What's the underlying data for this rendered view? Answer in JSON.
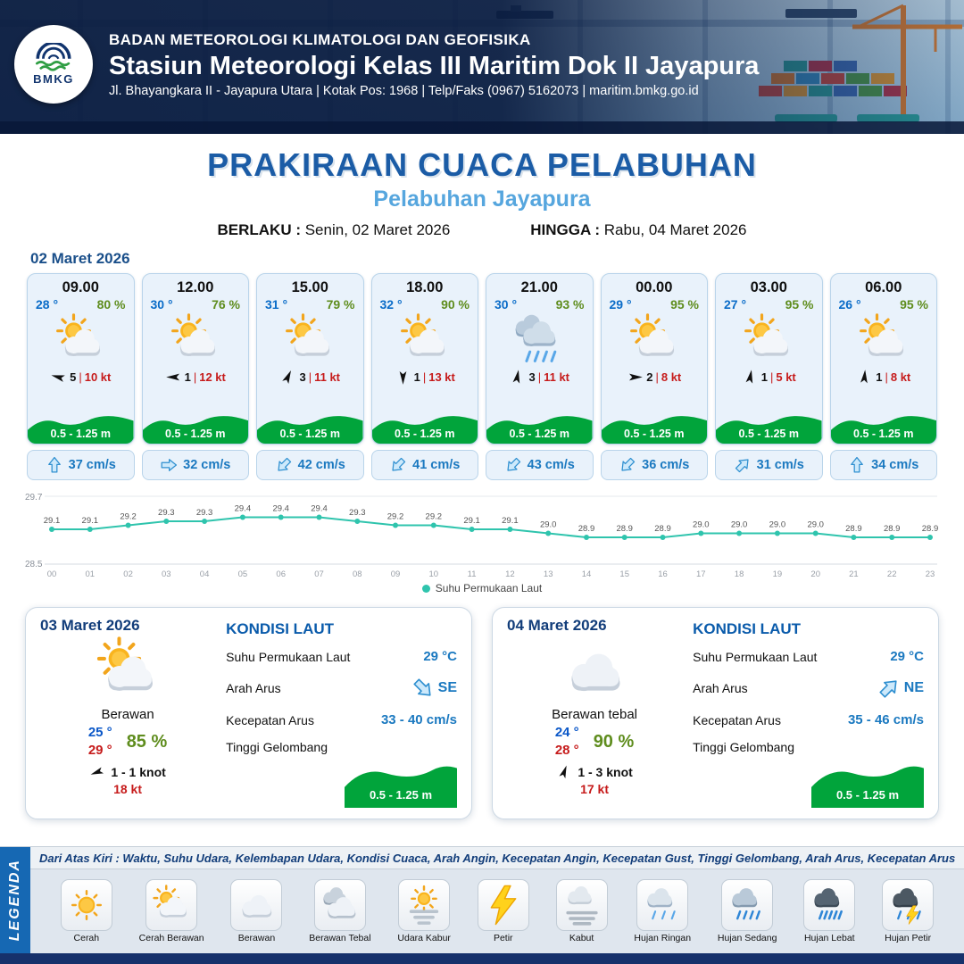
{
  "colors": {
    "header_navy": "#0b1f44",
    "title_blue": "#1b5ca6",
    "subtitle_blue": "#56a6de",
    "temp_blue": "#0a6cc8",
    "temp_max_red": "#c61b1b",
    "humidity_green": "#5f8d1e",
    "wind_red": "#c61b1b",
    "wave_green": "#01a43b",
    "current_blue": "#1b79c0",
    "sst_line_teal": "#2fc4ad"
  },
  "header": {
    "logo_text": "BMKG",
    "agency": "BADAN METEOROLOGI KLIMATOLOGI DAN GEOFISIKA",
    "station": "Stasiun Meteorologi Kelas III Maritim Dok II Jayapura",
    "address": "Jl. Bhayangkara II - Jayapura Utara | Kotak Pos: 1968 | Telp/Faks (0967) 5162073 | maritim.bmkg.go.id"
  },
  "title": {
    "main": "PRAKIRAAN CUACA PELABUHAN",
    "sub": "Pelabuhan Jayapura"
  },
  "validity": {
    "from_label": "BERLAKU :",
    "from_value": "Senin, 02 Maret 2026",
    "to_label": "HINGGA :",
    "to_value": "Rabu, 04 Maret 2026"
  },
  "forecast_date": "02 Maret 2026",
  "forecast_cards": [
    {
      "time": "09.00",
      "temp": "28 °",
      "humidity": "80 %",
      "icon": "sun-cloud",
      "wind_dir_deg": 285,
      "wind": "5",
      "wind_speed": "10 kt",
      "wave": "0.5 - 1.25 m",
      "current_dir_deg": 0,
      "current": "37 cm/s"
    },
    {
      "time": "12.00",
      "temp": "30 °",
      "humidity": "76 %",
      "icon": "sun-cloud",
      "wind_dir_deg": 270,
      "wind": "1",
      "wind_speed": "12 kt",
      "wave": "0.5 - 1.25 m",
      "current_dir_deg": 90,
      "current": "32 cm/s"
    },
    {
      "time": "15.00",
      "temp": "31 °",
      "humidity": "79 %",
      "icon": "sun-cloud",
      "wind_dir_deg": 25,
      "wind": "3",
      "wind_speed": "11 kt",
      "wave": "0.5 - 1.25 m",
      "current_dir_deg": 225,
      "current": "42 cm/s"
    },
    {
      "time": "18.00",
      "temp": "32 °",
      "humidity": "90 %",
      "icon": "sun-cloud",
      "wind_dir_deg": 180,
      "wind": "1",
      "wind_speed": "13 kt",
      "wave": "0.5 - 1.25 m",
      "current_dir_deg": 225,
      "current": "41 cm/s"
    },
    {
      "time": "21.00",
      "temp": "30 °",
      "humidity": "93 %",
      "icon": "rain",
      "wind_dir_deg": 10,
      "wind": "3",
      "wind_speed": "11 kt",
      "wave": "0.5 - 1.25 m",
      "current_dir_deg": 225,
      "current": "43 cm/s"
    },
    {
      "time": "00.00",
      "temp": "29 °",
      "humidity": "95 %",
      "icon": "sun-cloud",
      "wind_dir_deg": 90,
      "wind": "2",
      "wind_speed": "8 kt",
      "wave": "0.5 - 1.25 m",
      "current_dir_deg": 225,
      "current": "36 cm/s"
    },
    {
      "time": "03.00",
      "temp": "27 °",
      "humidity": "95 %",
      "icon": "sun-cloud",
      "wind_dir_deg": 10,
      "wind": "1",
      "wind_speed": "5 kt",
      "wave": "0.5 - 1.25 m",
      "current_dir_deg": 45,
      "current": "31 cm/s"
    },
    {
      "time": "06.00",
      "temp": "26 °",
      "humidity": "95 %",
      "icon": "sun-cloud",
      "wind_dir_deg": 5,
      "wind": "1",
      "wind_speed": "8 kt",
      "wave": "0.5 - 1.25 m",
      "current_dir_deg": 0,
      "current": "34 cm/s"
    }
  ],
  "chart_data": {
    "type": "line",
    "series_label": "Suhu Permukaan Laut",
    "x": [
      "00",
      "01",
      "02",
      "03",
      "04",
      "05",
      "06",
      "07",
      "08",
      "09",
      "10",
      "11",
      "12",
      "13",
      "14",
      "15",
      "16",
      "17",
      "18",
      "19",
      "20",
      "21",
      "22",
      "23"
    ],
    "values": [
      29.1,
      29.1,
      29.2,
      29.3,
      29.3,
      29.4,
      29.4,
      29.4,
      29.3,
      29.2,
      29.2,
      29.1,
      29.1,
      29.0,
      28.9,
      28.9,
      28.9,
      29.0,
      29.0,
      29.0,
      29.0,
      28.9,
      28.9,
      28.9
    ],
    "ylim": [
      28.5,
      29.7
    ],
    "xlabel": "",
    "ylabel": "",
    "line_color": "#2fc4ad",
    "legend_position": "bottom",
    "grid": false
  },
  "daily_cards": [
    {
      "date": "03 Maret 2026",
      "icon": "sun-cloud",
      "condition": "Berawan",
      "temp_min": "25 °",
      "temp_max": "29 °",
      "humidity": "85 %",
      "wind_dir_deg": 250,
      "wind_range": "1 - 1 knot",
      "gust": "18 kt",
      "sea": {
        "title": "KONDISI LAUT",
        "sst_label": "Suhu Permukaan Laut",
        "sst": "29 °C",
        "current_dir_label": "Arah Arus",
        "current_dir": "SE",
        "current_dir_deg": 135,
        "current_speed_label": "Kecepatan Arus",
        "current_speed": "33 - 40 cm/s",
        "wave_label": "Tinggi Gelombang",
        "wave": "0.5 - 1.25 m"
      }
    },
    {
      "date": "04 Maret 2026",
      "icon": "cloud",
      "condition": "Berawan tebal",
      "temp_min": "24 °",
      "temp_max": "28 °",
      "humidity": "90 %",
      "wind_dir_deg": 20,
      "wind_range": "1 - 3 knot",
      "gust": "17 kt",
      "sea": {
        "title": "KONDISI LAUT",
        "sst_label": "Suhu Permukaan Laut",
        "sst": "29 °C",
        "current_dir_label": "Arah Arus",
        "current_dir": "NE",
        "current_dir_deg": 45,
        "current_speed_label": "Kecepatan Arus",
        "current_speed": "35 - 46 cm/s",
        "wave_label": "Tinggi Gelombang",
        "wave": "0.5 - 1.25 m"
      }
    }
  ],
  "legend": {
    "title": "LEGENDA",
    "description": "Dari Atas Kiri : Waktu, Suhu Udara, Kelembapan Udara, Kondisi Cuaca, Arah Angin, Kecepatan Angin, Kecepatan Gust, Tinggi Gelombang, Arah Arus, Kecepatan Arus",
    "items": [
      {
        "label": "Cerah",
        "icon": "sun"
      },
      {
        "label": "Cerah Berawan",
        "icon": "sun-cloud"
      },
      {
        "label": "Berawan",
        "icon": "cloud"
      },
      {
        "label": "Berawan Tebal",
        "icon": "clouds"
      },
      {
        "label": "Udara Kabur",
        "icon": "haze"
      },
      {
        "label": "Petir",
        "icon": "lightning"
      },
      {
        "label": "Kabut",
        "icon": "fog"
      },
      {
        "label": "Hujan Ringan",
        "icon": "rain-light"
      },
      {
        "label": "Hujan Sedang",
        "icon": "rain-medium"
      },
      {
        "label": "Hujan Lebat",
        "icon": "rain-heavy"
      },
      {
        "label": "Hujan Petir",
        "icon": "thunderstorm"
      }
    ]
  }
}
